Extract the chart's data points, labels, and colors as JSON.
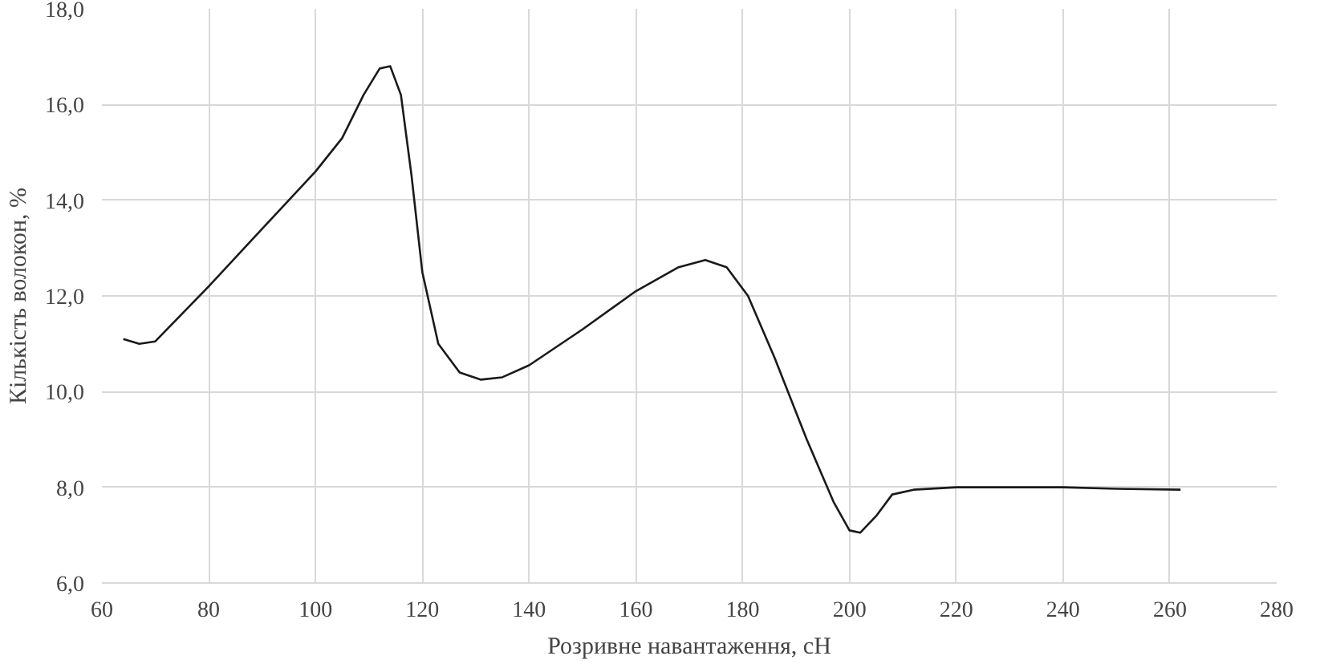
{
  "chart_data": {
    "type": "line",
    "xlabel": "Розривне навантаження, сН",
    "ylabel": "Кількість волокон, %",
    "x": [
      64,
      67,
      70,
      80,
      90,
      100,
      105,
      109,
      112,
      114,
      116,
      118,
      120,
      123,
      127,
      131,
      135,
      140,
      150,
      160,
      168,
      173,
      177,
      181,
      186,
      192,
      197,
      200,
      202,
      205,
      208,
      212,
      220,
      230,
      240,
      250,
      262
    ],
    "series": [
      {
        "color": "#1a1a1a",
        "values": [
          11.1,
          11.0,
          11.05,
          12.2,
          13.4,
          14.6,
          15.3,
          16.2,
          16.75,
          16.8,
          16.2,
          14.5,
          12.5,
          11.0,
          10.4,
          10.25,
          10.3,
          10.55,
          11.3,
          12.1,
          12.6,
          12.75,
          12.6,
          12.0,
          10.7,
          9.0,
          7.7,
          7.1,
          7.05,
          7.4,
          7.85,
          7.95,
          8.0,
          8.0,
          8.0,
          7.97,
          7.95
        ]
      }
    ],
    "xlim": [
      60,
      280
    ],
    "xticks": [
      60,
      80,
      100,
      120,
      140,
      160,
      180,
      200,
      220,
      240,
      260,
      280
    ],
    "ylim": [
      6,
      18
    ],
    "yticks": [
      {
        "value": 6,
        "label": "6,0"
      },
      {
        "value": 8,
        "label": "8,0"
      },
      {
        "value": 10,
        "label": "10,0"
      },
      {
        "value": 12,
        "label": "12,0"
      },
      {
        "value": 14,
        "label": "14,0"
      },
      {
        "value": 16,
        "label": "16,0"
      },
      {
        "value": 18,
        "label": "18,0"
      }
    ],
    "grid": true,
    "marker": "none",
    "line_style": "solid"
  }
}
